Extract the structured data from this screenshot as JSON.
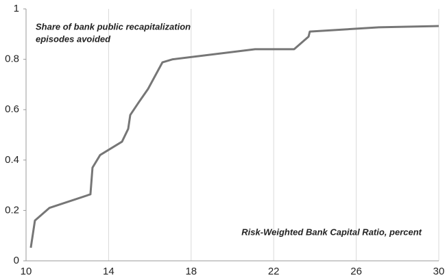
{
  "chart_data": {
    "type": "line",
    "annotations": [
      "Share of bank public recapitalization",
      "episodes avoided"
    ],
    "xlabel": "Risk-Weighted Bank Capital Ratio, percent",
    "x": [
      10.23,
      10.43,
      11.13,
      13.12,
      13.22,
      13.59,
      14.65,
      14.95,
      15.05,
      15.45,
      15.91,
      16.61,
      17.11,
      21.1,
      22.99,
      23.69,
      23.75,
      27.1,
      30
    ],
    "series": [
      {
        "color": "#767676",
        "values": [
          0.052,
          0.16,
          0.21,
          0.264,
          0.37,
          0.42,
          0.473,
          0.524,
          0.579,
          0.628,
          0.682,
          0.788,
          0.8,
          0.84,
          0.84,
          0.89,
          0.91,
          0.927,
          0.932
        ]
      }
    ],
    "xlim": [
      10,
      30
    ],
    "xticks": [
      10,
      14,
      18,
      22,
      26,
      30
    ],
    "ylim": [
      0,
      1
    ],
    "yticks": [
      0,
      0.2,
      0.4,
      0.6,
      0.8,
      1
    ],
    "grid": "x"
  }
}
